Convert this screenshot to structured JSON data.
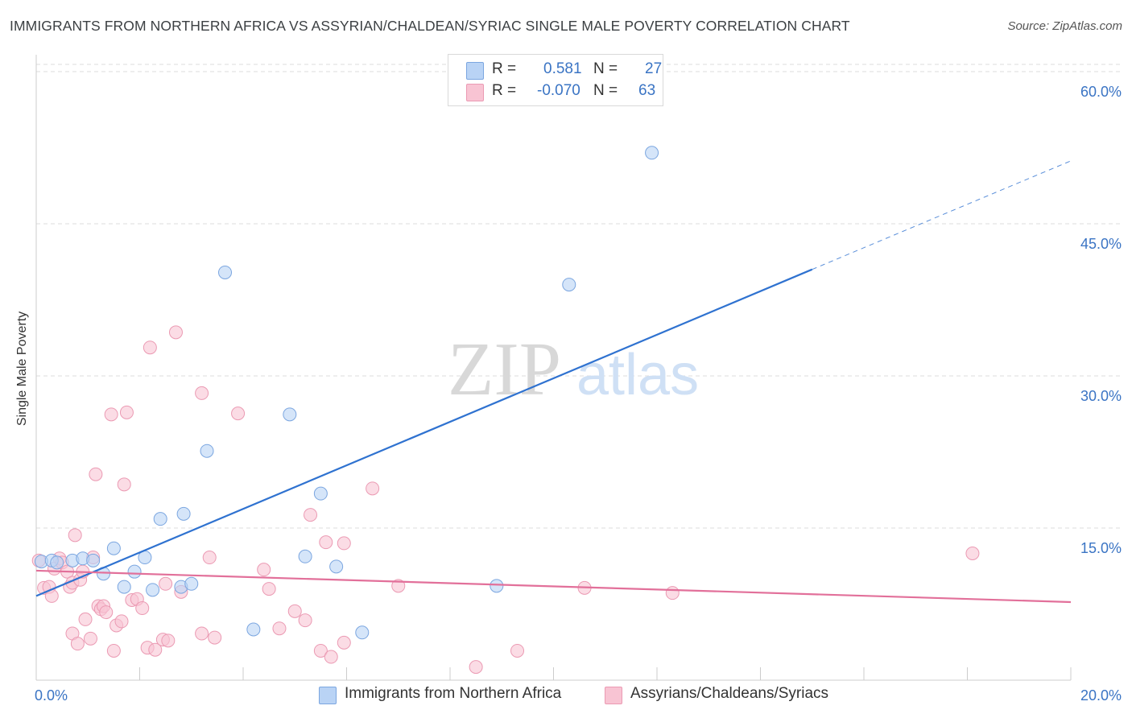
{
  "title": "IMMIGRANTS FROM NORTHERN AFRICA VS ASSYRIAN/CHALDEAN/SYRIAC SINGLE MALE POVERTY CORRELATION CHART",
  "source": "Source: ZipAtlas.com",
  "watermark": {
    "zip": "ZIP",
    "atlas": "atlas"
  },
  "legend": {
    "rows": [
      {
        "r_label": "R =",
        "r_value": "0.581",
        "n_label": "N =",
        "n_value": "27"
      },
      {
        "r_label": "R =",
        "r_value": "-0.070",
        "n_label": "N =",
        "n_value": "63"
      }
    ]
  },
  "bottom_legend": [
    "Immigrants from Northern Africa",
    "Assyrians/Chaldeans/Syriacs"
  ],
  "colors": {
    "blue_fill": "#b9d3f5",
    "blue_stroke": "#7ba6e0",
    "blue_line": "#2f72d0",
    "pink_fill": "#f8c4d3",
    "pink_stroke": "#eb9ab3",
    "pink_line": "#e2709a",
    "axis_text": "#3a74c4",
    "grid": "#dddddd"
  },
  "chart_data": {
    "type": "scatter",
    "title": "IMMIGRANTS FROM NORTHERN AFRICA VS ASSYRIAN/CHALDEAN/SYRIAC SINGLE MALE POVERTY CORRELATION CHART",
    "xlabel": "",
    "ylabel": "Single Male Poverty",
    "xlim": [
      0,
      20
    ],
    "ylim": [
      0,
      60
    ],
    "x_tick_labels": [
      "0.0%",
      "20.0%"
    ],
    "y_ticks": [
      15,
      30,
      45,
      60
    ],
    "y_tick_labels": [
      "15.0%",
      "30.0%",
      "45.0%",
      "60.0%"
    ],
    "grid": true,
    "legend_position": "top-center",
    "series": [
      {
        "name": "Immigrants from Northern Africa",
        "color": "#b9d3f5",
        "points": [
          [
            0.1,
            11.7
          ],
          [
            0.3,
            11.8
          ],
          [
            0.4,
            11.6
          ],
          [
            0.7,
            11.8
          ],
          [
            0.9,
            12.0
          ],
          [
            1.1,
            11.8
          ],
          [
            1.3,
            10.5
          ],
          [
            1.5,
            13.0
          ],
          [
            1.7,
            9.2
          ],
          [
            1.9,
            10.7
          ],
          [
            2.1,
            12.1
          ],
          [
            2.25,
            8.9
          ],
          [
            2.4,
            15.9
          ],
          [
            2.8,
            9.2
          ],
          [
            2.85,
            16.4
          ],
          [
            3.0,
            9.5
          ],
          [
            3.3,
            22.6
          ],
          [
            3.65,
            40.2
          ],
          [
            4.2,
            5.0
          ],
          [
            4.9,
            26.2
          ],
          [
            5.2,
            12.2
          ],
          [
            5.5,
            18.4
          ],
          [
            5.8,
            11.2
          ],
          [
            6.3,
            4.7
          ],
          [
            8.9,
            9.3
          ],
          [
            10.3,
            39.0
          ],
          [
            11.9,
            52.0
          ]
        ]
      },
      {
        "name": "Assyrians/Chaldeans/Syriacs",
        "color": "#f8c4d3",
        "points": [
          [
            0.05,
            11.8
          ],
          [
            0.15,
            9.1
          ],
          [
            0.25,
            9.2
          ],
          [
            0.3,
            8.3
          ],
          [
            0.35,
            11.0
          ],
          [
            0.45,
            12.0
          ],
          [
            0.5,
            11.6
          ],
          [
            0.6,
            10.7
          ],
          [
            0.65,
            9.2
          ],
          [
            0.7,
            9.6
          ],
          [
            0.7,
            4.6
          ],
          [
            0.75,
            14.3
          ],
          [
            0.8,
            3.6
          ],
          [
            0.85,
            9.9
          ],
          [
            0.9,
            10.7
          ],
          [
            0.95,
            6.0
          ],
          [
            1.05,
            4.1
          ],
          [
            1.1,
            12.1
          ],
          [
            1.15,
            20.3
          ],
          [
            1.2,
            7.3
          ],
          [
            1.25,
            7.0
          ],
          [
            1.3,
            7.3
          ],
          [
            1.35,
            6.7
          ],
          [
            1.45,
            26.2
          ],
          [
            1.5,
            2.9
          ],
          [
            1.55,
            5.4
          ],
          [
            1.65,
            5.8
          ],
          [
            1.7,
            19.3
          ],
          [
            1.75,
            26.4
          ],
          [
            1.85,
            7.9
          ],
          [
            1.95,
            8.0
          ],
          [
            2.05,
            7.1
          ],
          [
            2.15,
            3.2
          ],
          [
            2.2,
            32.8
          ],
          [
            2.3,
            3.0
          ],
          [
            2.45,
            4.0
          ],
          [
            2.5,
            9.5
          ],
          [
            2.55,
            3.9
          ],
          [
            2.7,
            34.3
          ],
          [
            2.8,
            8.7
          ],
          [
            3.2,
            4.6
          ],
          [
            3.2,
            28.3
          ],
          [
            3.35,
            12.1
          ],
          [
            3.45,
            4.2
          ],
          [
            3.9,
            26.3
          ],
          [
            4.4,
            10.9
          ],
          [
            4.5,
            9.0
          ],
          [
            4.7,
            5.1
          ],
          [
            5.0,
            6.8
          ],
          [
            5.2,
            5.9
          ],
          [
            5.3,
            16.3
          ],
          [
            5.5,
            2.9
          ],
          [
            5.6,
            13.6
          ],
          [
            5.7,
            2.3
          ],
          [
            5.95,
            3.7
          ],
          [
            5.95,
            13.5
          ],
          [
            6.5,
            18.9
          ],
          [
            7.0,
            9.3
          ],
          [
            8.5,
            1.3
          ],
          [
            9.3,
            2.9
          ],
          [
            10.6,
            9.1
          ],
          [
            12.3,
            8.6
          ],
          [
            18.1,
            12.5
          ]
        ]
      }
    ],
    "trend_lines": [
      {
        "series": "Immigrants from Northern Africa",
        "from": [
          0,
          8.3
        ],
        "to": [
          15.0,
          40.5
        ],
        "dashed_to": [
          20,
          51.2
        ]
      },
      {
        "series": "Assyrians/Chaldeans/Syriacs",
        "from": [
          0,
          10.8
        ],
        "to": [
          20,
          7.7
        ]
      }
    ]
  }
}
